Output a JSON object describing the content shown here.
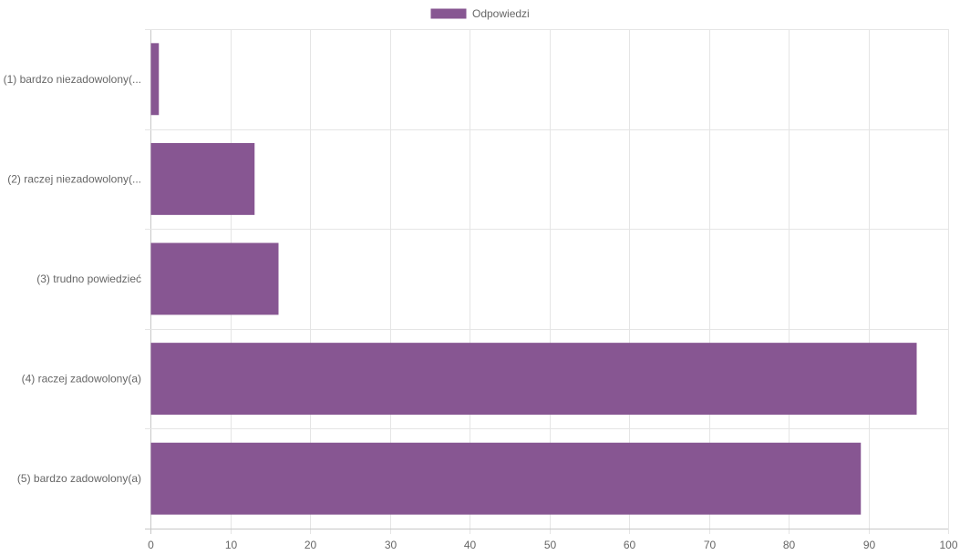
{
  "chart_data": {
    "type": "bar",
    "orientation": "horizontal",
    "categories": [
      "(1) bardzo niezadowolony(...",
      "(2) raczej niezadowolony(...",
      "(3) trudno powiedzieć",
      "(4) raczej zadowolony(a)",
      "(5) bardzo zadowolony(a)"
    ],
    "series": [
      {
        "name": "Odpowiedzi",
        "color": "#875692",
        "values": [
          1,
          13,
          16,
          96,
          89
        ]
      }
    ],
    "xlim": [
      0,
      100
    ],
    "xticks": [
      0,
      10,
      20,
      30,
      40,
      50,
      60,
      70,
      80,
      90,
      100
    ],
    "grid": true,
    "legend_position": "top-center"
  }
}
